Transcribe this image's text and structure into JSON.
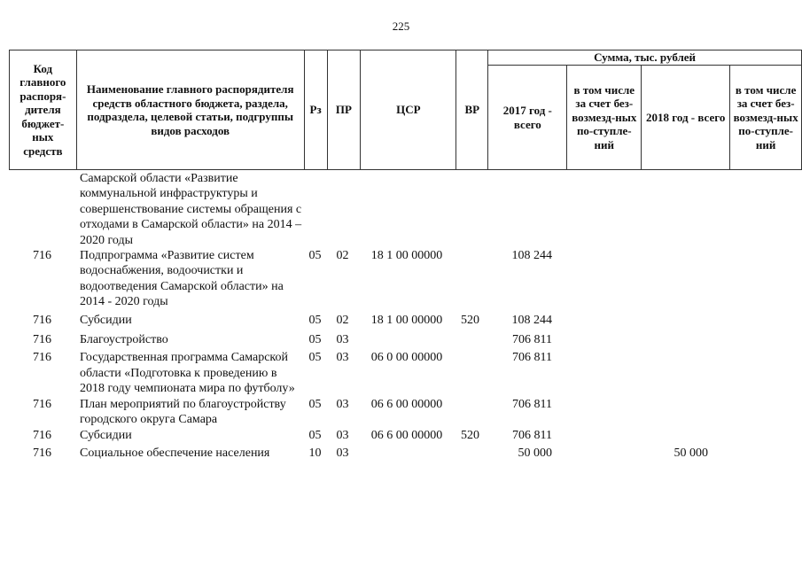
{
  "page_number": "225",
  "header": {
    "code": "Код главного распоря-дителя бюджет-ных средств",
    "name": "Наименование главного распорядителя средств областного бюджета, раздела, подраздела, целевой статьи, подгруппы видов расходов",
    "rz": "Рз",
    "pr": "ПР",
    "csr": "ЦСР",
    "vr": "ВР",
    "sum": "Сумма, тыс. рублей",
    "y2017": "2017 год - всего",
    "y2017_incl": "в том числе за счет без-возмезд-ных по-ступле-ний",
    "y2018": "2018 год - всего",
    "y2018_incl": "в том числе за счет без-возмезд-ных по-ступле-ний"
  },
  "rows": [
    {
      "code": "",
      "name": "Самарской области «Развитие коммунальной инфраструктуры и совершенствование системы обращения с отходами в Самарской области» на 2014 – 2020 годы",
      "rz": "",
      "pr": "",
      "csr": "",
      "vr": "",
      "s2017": "",
      "s2017_incl": "",
      "s2018": "",
      "s2018_incl": ""
    },
    {
      "code": "716",
      "name": "Подпрограмма «Развитие систем водоснабжения, водоочистки и водоотведения Самарской области» на 2014 - 2020 годы",
      "rz": "05",
      "pr": "02",
      "csr": "18 1 00 00000",
      "vr": "",
      "s2017": "108 244",
      "s2017_incl": "",
      "s2018": "",
      "s2018_incl": ""
    },
    {
      "code": "716",
      "name": "Субсидии",
      "rz": "05",
      "pr": "02",
      "csr": "18 1 00 00000",
      "vr": "520",
      "s2017": "108 244",
      "s2017_incl": "",
      "s2018": "",
      "s2018_incl": ""
    },
    {
      "code": "716",
      "name": "Благоустройство",
      "rz": "05",
      "pr": "03",
      "csr": "",
      "vr": "",
      "s2017": "706 811",
      "s2017_incl": "",
      "s2018": "",
      "s2018_incl": ""
    },
    {
      "code": "716",
      "name": "Государственная программа Самарской области «Подготовка к проведению в 2018 году чемпионата мира по футболу»",
      "rz": "05",
      "pr": "03",
      "csr": "06 0 00 00000",
      "vr": "",
      "s2017": "706 811",
      "s2017_incl": "",
      "s2018": "",
      "s2018_incl": ""
    },
    {
      "code": "716",
      "name": "План мероприятий по благоустройству городского округа Самара",
      "rz": "05",
      "pr": "03",
      "csr": "06 6 00 00000",
      "vr": "",
      "s2017": "706 811",
      "s2017_incl": "",
      "s2018": "",
      "s2018_incl": ""
    },
    {
      "code": "716",
      "name": "Субсидии",
      "rz": "05",
      "pr": "03",
      "csr": "06 6 00 00000",
      "vr": "520",
      "s2017": "706 811",
      "s2017_incl": "",
      "s2018": "",
      "s2018_incl": ""
    },
    {
      "code": "716",
      "name": "Социальное обеспечение населения",
      "rz": "10",
      "pr": "03",
      "csr": "",
      "vr": "",
      "s2017": "50 000",
      "s2017_incl": "",
      "s2018": "50 000",
      "s2018_incl": ""
    }
  ]
}
